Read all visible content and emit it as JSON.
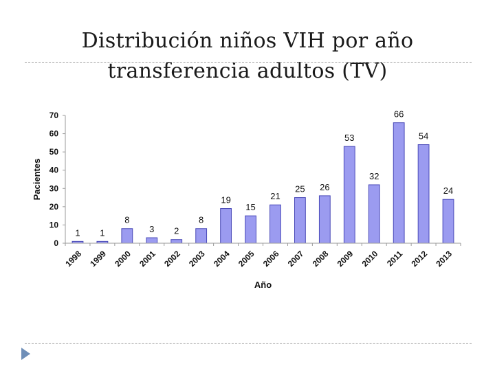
{
  "slide": {
    "title": "Distribución niños VIH por año transferencia adultos (TV)"
  },
  "colors": {
    "bar_fill": "#9b9bf0",
    "bar_stroke": "#4a4ab8",
    "axis": "#9a9a9a"
  },
  "chart_data": {
    "type": "bar",
    "xlabel": "Año",
    "ylabel": "Pacientes",
    "categories": [
      "1998",
      "1999",
      "2000",
      "2001",
      "2002",
      "2003",
      "2004",
      "2005",
      "2006",
      "2007",
      "2008",
      "2009",
      "2010",
      "2011",
      "2012",
      "2013"
    ],
    "values": [
      1,
      1,
      8,
      3,
      2,
      8,
      19,
      15,
      21,
      25,
      26,
      53,
      32,
      66,
      54,
      24
    ],
    "ylim": [
      0,
      70
    ],
    "yticks": [
      0,
      10,
      20,
      30,
      40,
      50,
      60,
      70
    ],
    "data_labels": true,
    "grid": false,
    "legend": "none"
  }
}
